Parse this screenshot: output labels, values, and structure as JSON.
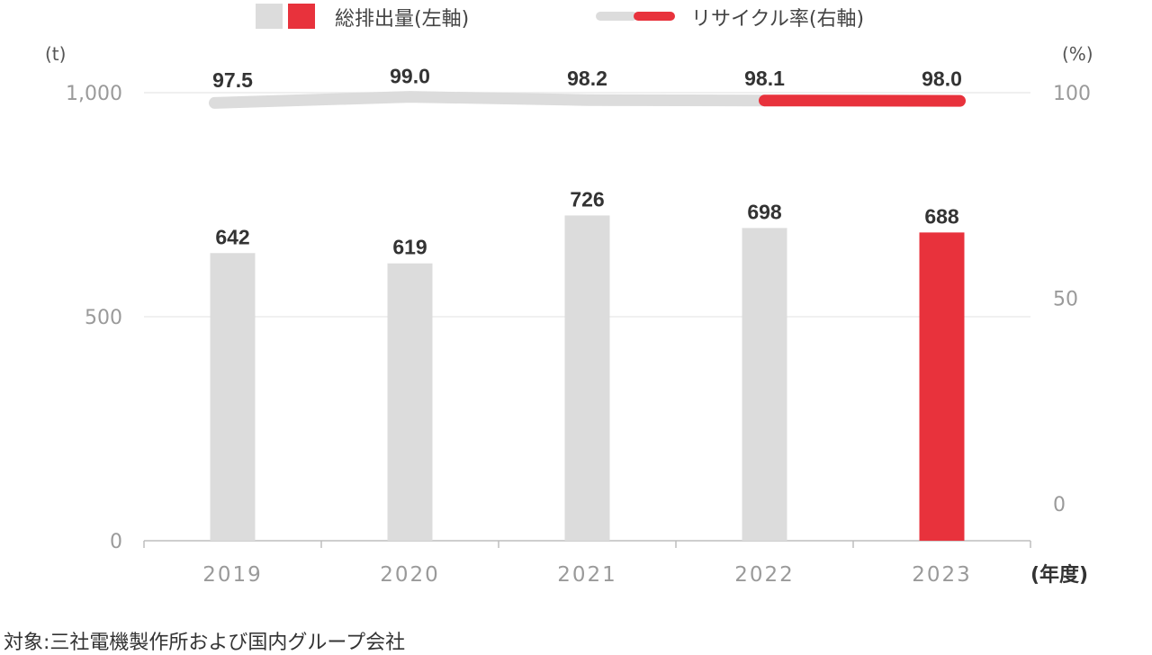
{
  "legend": {
    "bars_label": "総排出量(左軸)",
    "line_label": "リサイクル率(右軸)"
  },
  "units": {
    "left": "(t)",
    "right": "(%)",
    "x": "(年度)"
  },
  "footnote": "対象:三社電機製作所および国内グループ会社",
  "colors": {
    "gray": "#dcdcdc",
    "red": "#e8323c",
    "axis_text": "#9a9a9a",
    "label_text": "#333333"
  },
  "chart_data": {
    "type": "bar",
    "categories": [
      "2019",
      "2020",
      "2021",
      "2022",
      "2023"
    ],
    "series": [
      {
        "name": "総排出量(左軸)",
        "axis": "left",
        "kind": "bar",
        "values": [
          642,
          619,
          726,
          698,
          688
        ],
        "highlight_index": 4
      },
      {
        "name": "リサイクル率(右軸)",
        "axis": "right",
        "kind": "line",
        "values": [
          97.5,
          99.0,
          98.2,
          98.1,
          98.0
        ],
        "value_labels": [
          "97.5",
          "99.0",
          "98.2",
          "98.1",
          "98.0"
        ],
        "highlight_from_index": 3
      }
    ],
    "left_axis": {
      "ylim": [
        0,
        1000
      ],
      "ticks": [
        "0",
        "500",
        "1,000"
      ],
      "tick_values": [
        0,
        500,
        1000
      ]
    },
    "right_axis": {
      "ylim": [
        0,
        100
      ],
      "ticks": [
        "0",
        "50",
        "100"
      ],
      "tick_values": [
        0,
        50,
        100
      ]
    },
    "grid": true,
    "legend_position": "top"
  }
}
